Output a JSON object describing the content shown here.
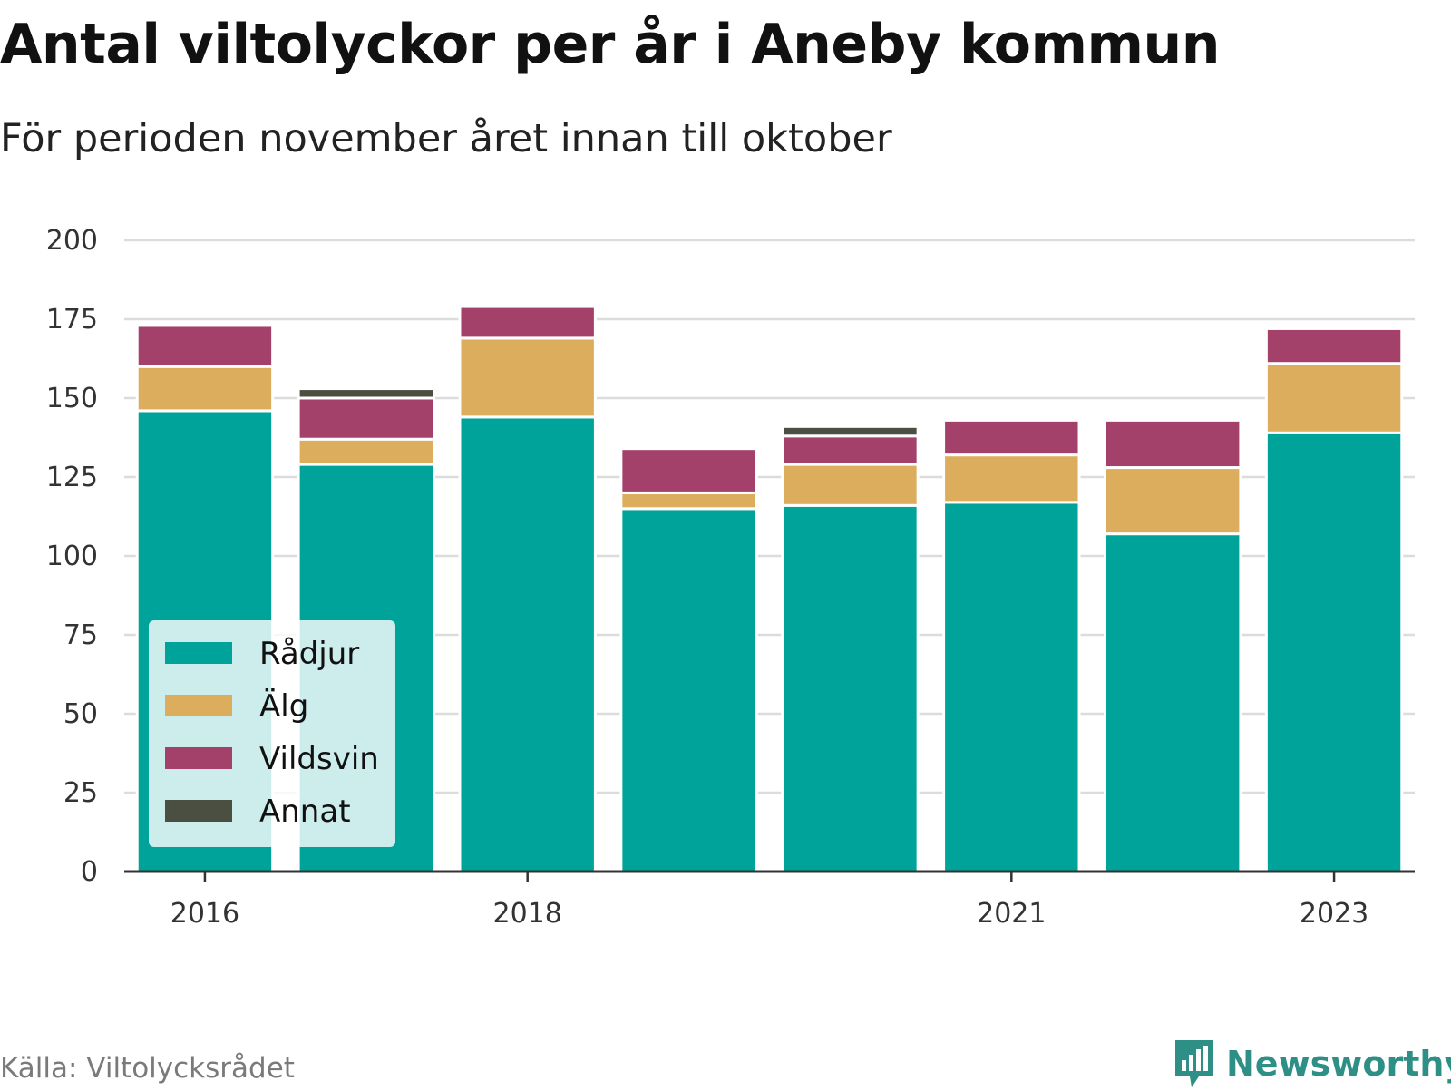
{
  "header": {
    "title": "Antal viltolyckor per år i Aneby kommun",
    "subtitle": "För perioden november året innan till oktober"
  },
  "footer": {
    "source": "Källa: Viltolycksrådet",
    "brand": "Newsworthy",
    "brand_icon": "bar-chart-speech-bubble-icon"
  },
  "chart_data": {
    "type": "bar",
    "stacked": true,
    "title": "Antal viltolyckor per år i Aneby kommun",
    "subtitle": "För perioden november året innan till oktober",
    "xlabel": "",
    "ylabel": "",
    "categories": [
      "2016",
      "2017",
      "2018",
      "2019",
      "2020",
      "2021",
      "2022",
      "2023"
    ],
    "x_tick_labels": [
      "2016",
      "2018",
      "2021",
      "2023"
    ],
    "ylim": [
      0,
      200
    ],
    "y_ticks": [
      0,
      25,
      50,
      75,
      100,
      125,
      150,
      175,
      200
    ],
    "grid": true,
    "legend_position": "bottom-left",
    "series": [
      {
        "name": "Rådjur",
        "color": "#00a39a",
        "values": [
          146,
          129,
          144,
          115,
          116,
          117,
          107,
          139
        ]
      },
      {
        "name": "Älg",
        "color": "#dbad5c",
        "values": [
          14,
          8,
          25,
          5,
          13,
          15,
          21,
          22
        ]
      },
      {
        "name": "Vildsvin",
        "color": "#a3416a",
        "values": [
          13,
          13,
          10,
          14,
          9,
          11,
          15,
          11
        ]
      },
      {
        "name": "Annat",
        "color": "#4b4f42",
        "values": [
          0,
          3,
          0,
          0,
          3,
          0,
          0,
          0
        ]
      }
    ]
  }
}
